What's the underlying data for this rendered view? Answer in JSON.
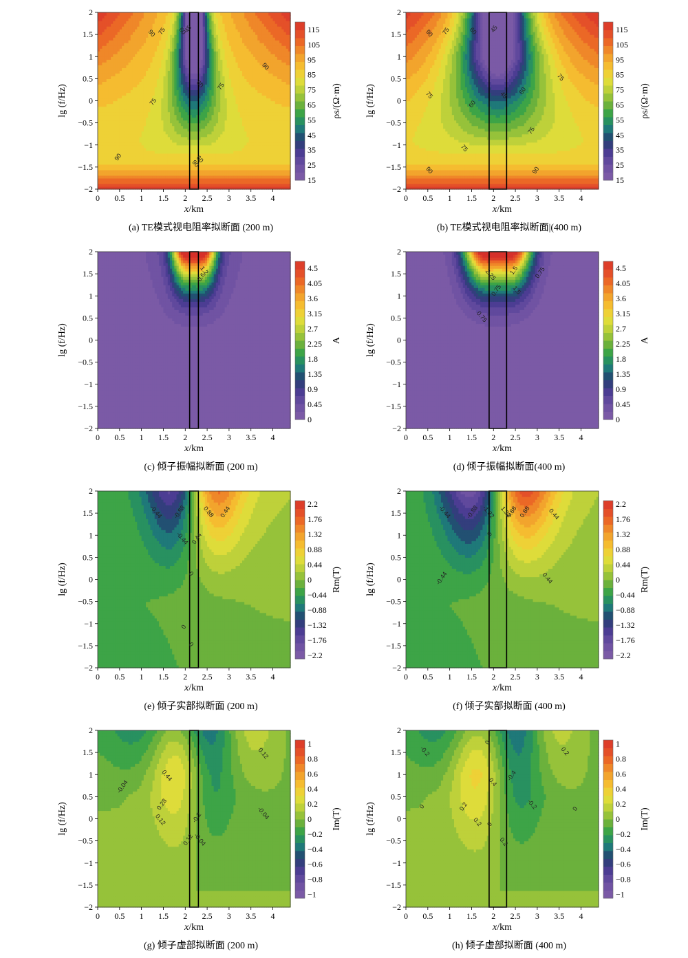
{
  "chart_data": [
    {
      "type": "heatmap",
      "panel_id": "a",
      "caption": "(a) TE模式视电阻率拟断面 (200 m)",
      "xlabel_var": "x",
      "xlabel_unit": "/km",
      "ylabel": "lg (f/Hz)",
      "xlim": [
        0,
        4.4
      ],
      "ylim": [
        -2,
        2
      ],
      "xticks": [
        "0",
        "0.5",
        "1",
        "1.5",
        "2",
        "2.5",
        "3",
        "3.5",
        "4"
      ],
      "yticks": [
        "-2",
        "-1.5",
        "-1",
        "-0.5",
        "0",
        "0.5",
        "1",
        "1.5",
        "2"
      ],
      "colorbar_label": "ρs/(Ω·m)",
      "colorbar_ticks": [
        "115",
        "105",
        "95",
        "85",
        "75",
        "65",
        "55",
        "45",
        "35",
        "25",
        "15"
      ],
      "colorbar_range": [
        15,
        120
      ],
      "body_width_km": 0.2,
      "body_center_km": 2.2,
      "contour_labels": [
        "90",
        "75",
        "60",
        "45",
        "60",
        "75",
        "90",
        "75",
        "60",
        "90",
        "90"
      ]
    },
    {
      "type": "heatmap",
      "panel_id": "b",
      "caption": "(b) TE模式视电阻率拟断面|(400 m)",
      "xlabel_var": "x",
      "xlabel_unit": "/km",
      "ylabel": "lg (f/Hz)",
      "xlim": [
        0,
        4.4
      ],
      "ylim": [
        -2,
        2
      ],
      "xticks": [
        "0",
        "0.5",
        "1",
        "1.5",
        "2",
        "2.5",
        "3",
        "3.5",
        "4"
      ],
      "yticks": [
        "-2",
        "-1.5",
        "-1",
        "-0.5",
        "0",
        "0.5",
        "1",
        "1.5",
        "2"
      ],
      "colorbar_label": "ρs/(Ω·m)",
      "colorbar_ticks": [
        "115",
        "105",
        "95",
        "85",
        "75",
        "65",
        "55",
        "45",
        "35",
        "25",
        "15"
      ],
      "colorbar_range": [
        15,
        120
      ],
      "body_width_km": 0.4,
      "body_center_km": 2.1,
      "contour_labels": [
        "90",
        "75",
        "60",
        "45",
        "75",
        "60",
        "45",
        "60",
        "75",
        "75",
        "75",
        "90",
        "90"
      ]
    },
    {
      "type": "heatmap",
      "panel_id": "c",
      "caption": "(c) 倾子振幅拟断面 (200 m)",
      "xlabel_var": "x",
      "xlabel_unit": "/km",
      "ylabel": "lg (f/Hz)",
      "xlim": [
        0,
        4.4
      ],
      "ylim": [
        -2,
        2
      ],
      "xticks": [
        "0",
        "0.5",
        "1",
        "1.5",
        "2",
        "2.5",
        "3",
        "3.5",
        "4"
      ],
      "yticks": [
        "-2",
        "-1.5",
        "-1",
        "-0.5",
        "0",
        "0.5",
        "1",
        "1.5",
        "2"
      ],
      "colorbar_label": "A",
      "colorbar_ticks": [
        "4.5",
        "4.05",
        "3.6",
        "3.15",
        "2.7",
        "2.25",
        "1.8",
        "1.35",
        "0.9",
        "0.45",
        "0"
      ],
      "colorbar_range": [
        0,
        4.7
      ],
      "body_width_km": 0.2,
      "body_center_km": 2.2,
      "contour_labels": [
        "1.2",
        "0.6"
      ]
    },
    {
      "type": "heatmap",
      "panel_id": "d",
      "caption": "(d) 倾子振幅拟断面(400 m)",
      "xlabel_var": "x",
      "xlabel_unit": "/km",
      "ylabel": "lg (f/Hz)",
      "xlim": [
        0,
        4.4
      ],
      "ylim": [
        -2,
        2
      ],
      "xticks": [
        "0",
        "0.5",
        "1",
        "1.5",
        "2",
        "2.5",
        "3",
        "3.5",
        "4"
      ],
      "yticks": [
        "-2",
        "-1.5",
        "-1",
        "-0.5",
        "0",
        "0.5",
        "1",
        "1.5",
        "2"
      ],
      "colorbar_label": "A",
      "colorbar_ticks": [
        "4.5",
        "4.05",
        "3.6",
        "3.15",
        "2.7",
        "2.25",
        "1.8",
        "1.35",
        "0.9",
        "0.45",
        "0"
      ],
      "colorbar_range": [
        0,
        4.7
      ],
      "body_width_km": 0.4,
      "body_center_km": 2.1,
      "contour_labels": [
        "2.25",
        "1.5",
        "0.75",
        "0.75",
        "1.5",
        "0.75"
      ]
    },
    {
      "type": "heatmap",
      "panel_id": "e",
      "caption": "(e) 倾子实部拟断面 (200 m)",
      "xlabel_var": "x",
      "xlabel_unit": "/km",
      "ylabel": "lg (f/Hz)",
      "xlim": [
        0,
        4.4
      ],
      "ylim": [
        -2,
        2
      ],
      "xticks": [
        "0",
        "0.5",
        "1",
        "1.5",
        "2",
        "2.5",
        "3",
        "3.5",
        "4"
      ],
      "yticks": [
        "-2",
        "-1.5",
        "-1",
        "-0.5",
        "0",
        "0.5",
        "1",
        "1.5",
        "2"
      ],
      "colorbar_label": "Rm(T)",
      "colorbar_ticks": [
        "2.2",
        "1.76",
        "1.32",
        "0.88",
        "0.44",
        "0",
        "-0.44",
        "-0.88",
        "-1.32",
        "-1.76",
        "-2.2"
      ],
      "colorbar_range": [
        -2.3,
        2.3
      ],
      "body_width_km": 0.2,
      "body_center_km": 2.2,
      "contour_labels": [
        "-0.44",
        "-0.88",
        "0.88",
        "0.44",
        "-0.44",
        "0.44",
        "0",
        "0",
        "0"
      ]
    },
    {
      "type": "heatmap",
      "panel_id": "f",
      "caption": "(f) 倾子实部拟断面 (400 m)",
      "xlabel_var": "x",
      "xlabel_unit": "/km",
      "ylabel": "lg (f/Hz)",
      "xlim": [
        0,
        4.4
      ],
      "ylim": [
        -2,
        2
      ],
      "xticks": [
        "0",
        "0.5",
        "1",
        "1.5",
        "2",
        "2.5",
        "3",
        "3.5",
        "4"
      ],
      "yticks": [
        "-2",
        "-1.5",
        "-1",
        "-0.5",
        "0",
        "0.5",
        "1",
        "1.5",
        "2"
      ],
      "colorbar_label": "Rm(T)",
      "colorbar_ticks": [
        "2.2",
        "1.76",
        "1.32",
        "0.88",
        "0.44",
        "0",
        "-0.44",
        "-0.88",
        "-1.32",
        "-1.76",
        "-2.2"
      ],
      "colorbar_range": [
        -2.3,
        2.3
      ],
      "body_width_km": 0.4,
      "body_center_km": 2.1,
      "contour_labels": [
        "-0.44",
        "-0.88",
        "-1.32",
        "0.88",
        "1.32",
        "0.88",
        "0.44",
        "-0.44",
        "0.44",
        "0"
      ]
    },
    {
      "type": "heatmap",
      "panel_id": "g",
      "caption": "(g) 倾子虚部拟断面 (200 m)",
      "xlabel_var": "x",
      "xlabel_unit": "/km",
      "ylabel": "lg (f/Hz)",
      "xlim": [
        0,
        4.4
      ],
      "ylim": [
        -2,
        2
      ],
      "xticks": [
        "0",
        "0.5",
        "1",
        "1.5",
        "2",
        "2.5",
        "3",
        "3.5",
        "4"
      ],
      "yticks": [
        "-2",
        "-1.5",
        "-1",
        "-0.5",
        "0",
        "0.5",
        "1",
        "1.5",
        "2"
      ],
      "colorbar_label": "Im(T)",
      "colorbar_ticks": [
        "1",
        "0.8",
        "0.6",
        "0.4",
        "0.2",
        "0",
        "-0.2",
        "-0.4",
        "-0.6",
        "-0.8",
        "-1"
      ],
      "colorbar_range": [
        -1.05,
        1.05
      ],
      "body_width_km": 0.2,
      "body_center_km": 2.2,
      "contour_labels": [
        "0.12",
        "-0.04",
        "0.44",
        "0.28",
        "0.12",
        "-0.2",
        "-0.04",
        "0.12",
        "-0.04"
      ]
    },
    {
      "type": "heatmap",
      "panel_id": "h",
      "caption": "(h) 倾子虚部拟断面 (400 m)",
      "xlabel_var": "x",
      "xlabel_unit": "/km",
      "ylabel": "lg (f/Hz)",
      "xlim": [
        0,
        4.4
      ],
      "ylim": [
        -2,
        2
      ],
      "xticks": [
        "0",
        "0.5",
        "1",
        "1.5",
        "2",
        "2.5",
        "3",
        "3.5",
        "4"
      ],
      "yticks": [
        "-2",
        "-1.5",
        "-1",
        "-0.5",
        "0",
        "0.5",
        "1",
        "1.5",
        "2"
      ],
      "colorbar_label": "Im(T)",
      "colorbar_ticks": [
        "1",
        "0.8",
        "0.6",
        "0.4",
        "0.2",
        "0",
        "-0.2",
        "-0.4",
        "-0.6",
        "-0.8",
        "-1"
      ],
      "colorbar_range": [
        -1.05,
        1.05
      ],
      "body_width_km": 0.4,
      "body_center_km": 2.1,
      "contour_labels": [
        "-0.2",
        "0",
        "0.2",
        "0",
        "0.4",
        "0.2",
        "0.2",
        "-0.4",
        "-0.2",
        "0",
        "0.2",
        "0"
      ]
    }
  ]
}
